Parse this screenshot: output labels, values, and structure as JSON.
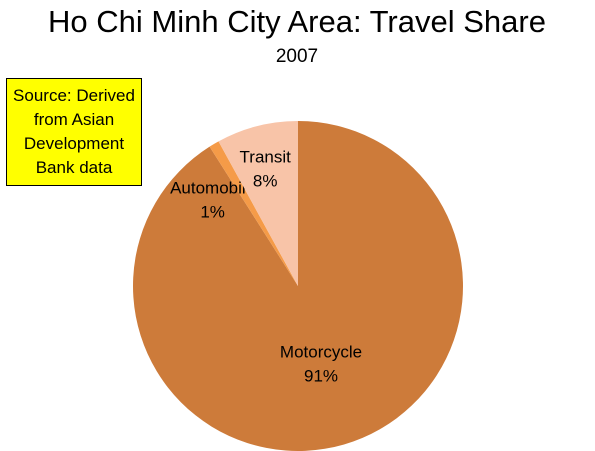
{
  "chart_data": {
    "type": "pie",
    "title": "Ho Chi Minh City Area: Travel Share",
    "subtitle": "2007",
    "annotation": "Source: Derived from Asian Development Bank data",
    "categories": [
      "Motorcycle",
      "Automobile",
      "Transit"
    ],
    "values": [
      91,
      1,
      8
    ],
    "value_labels": [
      "91%",
      "1%",
      "8%"
    ],
    "colors": [
      "#cd7b3a",
      "#f59b48",
      "#f8c4a8"
    ]
  }
}
